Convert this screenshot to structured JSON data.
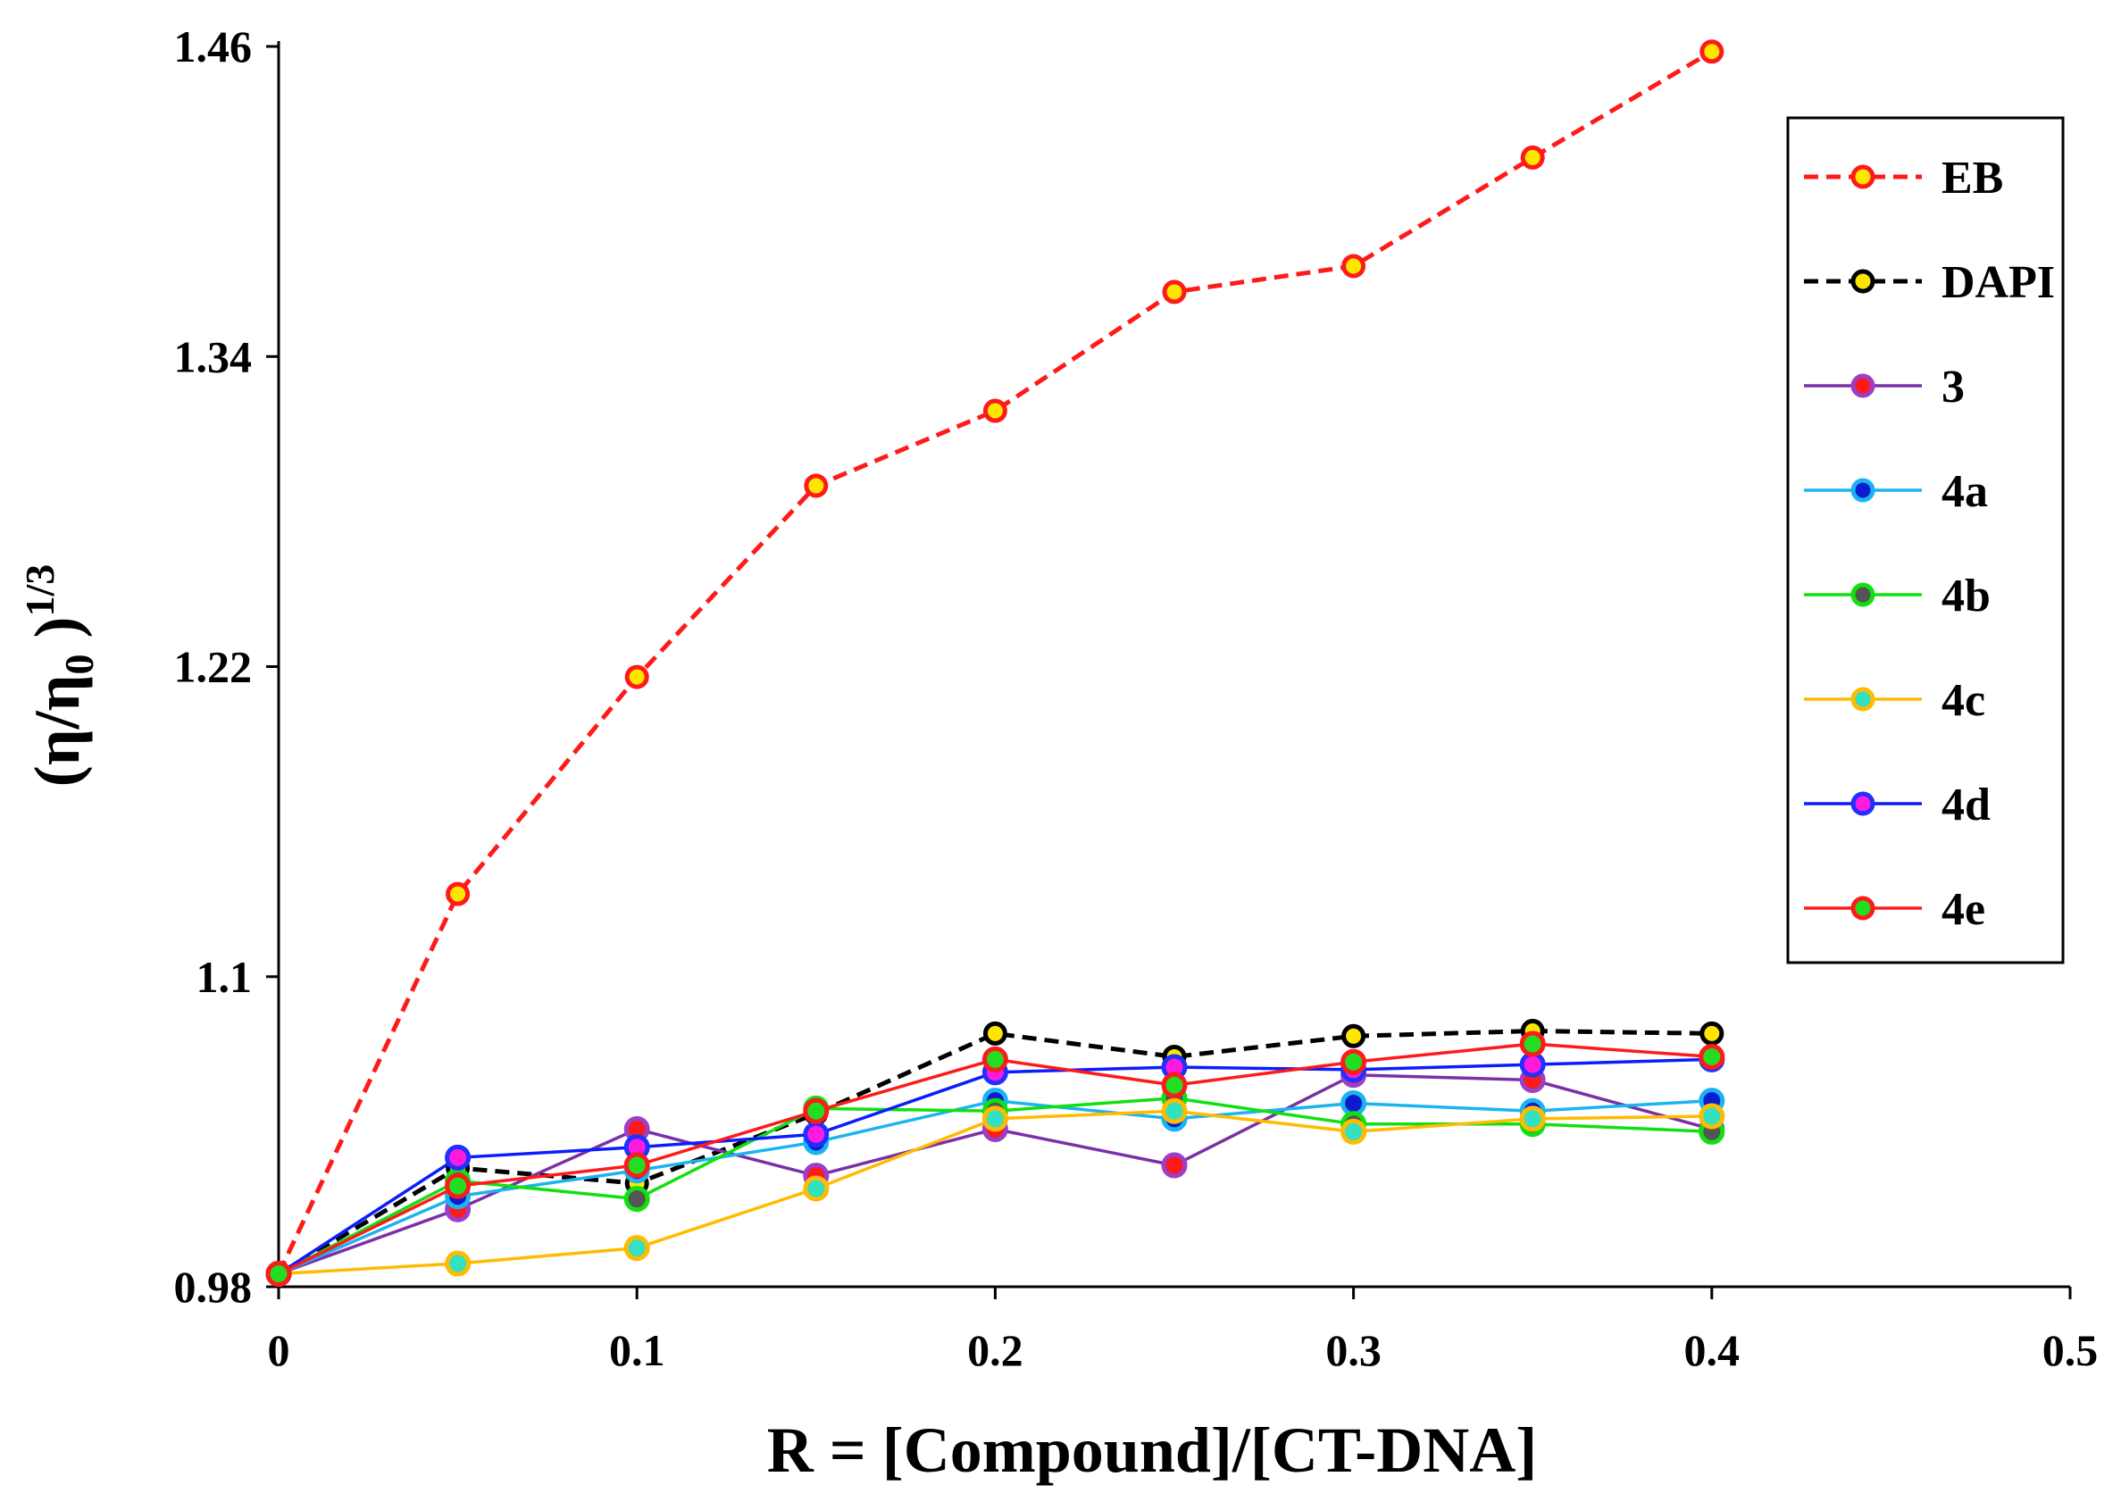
{
  "chart_data": {
    "type": "line",
    "title": "",
    "xlabel": "R = [Compound]/[CT-DNA]",
    "ylabel": {
      "base": "(η/η",
      "sub": "0",
      "close": " )",
      "sup": "1/3"
    },
    "xlim": [
      0,
      0.5
    ],
    "ylim": [
      0.98,
      1.46
    ],
    "xticks": [
      0,
      0.1,
      0.2,
      0.3,
      0.4,
      0.5
    ],
    "xtick_labels": [
      "0",
      "0.1",
      "0.2",
      "0.3",
      "0.4",
      "0.5"
    ],
    "yticks": [
      0.98,
      1.1,
      1.22,
      1.34,
      1.46
    ],
    "ytick_labels": [
      "0.98",
      "1.1",
      "1.22",
      "1.34",
      "1.46"
    ],
    "grid": false,
    "legend_position": "top-right",
    "x": [
      0,
      0.05,
      0.1,
      0.15,
      0.2,
      0.25,
      0.3,
      0.35,
      0.4
    ],
    "series": [
      {
        "name": "EB",
        "line_color": "#ff1a1a",
        "dash": true,
        "marker_edge": "#ff1a1a",
        "marker_fill": "#ffe600",
        "values": [
          0.985,
          1.132,
          1.216,
          1.29,
          1.319,
          1.365,
          1.375,
          1.417,
          1.458
        ]
      },
      {
        "name": "DAPI",
        "line_color": "#000000",
        "dash": true,
        "marker_edge": "#000000",
        "marker_fill": "#ffe600",
        "values": [
          0.985,
          1.026,
          1.02,
          1.047,
          1.078,
          1.069,
          1.077,
          1.079,
          1.078
        ]
      },
      {
        "name": "3",
        "line_color": "#7b2fa8",
        "dash": false,
        "marker_edge": "#9b3fc8",
        "marker_fill": "#ff1a1a",
        "values": [
          0.985,
          1.01,
          1.041,
          1.023,
          1.041,
          1.027,
          1.062,
          1.06,
          1.041
        ]
      },
      {
        "name": "4a",
        "line_color": "#1ab4f0",
        "dash": false,
        "marker_edge": "#1ab4f0",
        "marker_fill": "#0b1ccf",
        "values": [
          0.985,
          1.015,
          1.025,
          1.036,
          1.052,
          1.045,
          1.051,
          1.048,
          1.052
        ]
      },
      {
        "name": "4b",
        "line_color": "#10e010",
        "dash": false,
        "marker_edge": "#10e010",
        "marker_fill": "#555555",
        "values": [
          0.985,
          1.021,
          1.014,
          1.049,
          1.048,
          1.053,
          1.043,
          1.043,
          1.04
        ]
      },
      {
        "name": "4c",
        "line_color": "#ffbb00",
        "dash": false,
        "marker_edge": "#ffbb00",
        "marker_fill": "#33e0c0",
        "values": [
          0.985,
          0.989,
          0.995,
          1.018,
          1.045,
          1.048,
          1.04,
          1.045,
          1.046
        ]
      },
      {
        "name": "4d",
        "line_color": "#0b1cff",
        "dash": false,
        "marker_edge": "#2030ff",
        "marker_fill": "#ff1ae0",
        "values": [
          0.985,
          1.03,
          1.034,
          1.039,
          1.063,
          1.065,
          1.064,
          1.066,
          1.068
        ]
      },
      {
        "name": "4e",
        "line_color": "#ff1a1a",
        "dash": false,
        "marker_edge": "#ff1a1a",
        "marker_fill": "#22dd22",
        "values": [
          0.985,
          1.019,
          1.027,
          1.048,
          1.068,
          1.058,
          1.067,
          1.074,
          1.069
        ]
      }
    ]
  }
}
